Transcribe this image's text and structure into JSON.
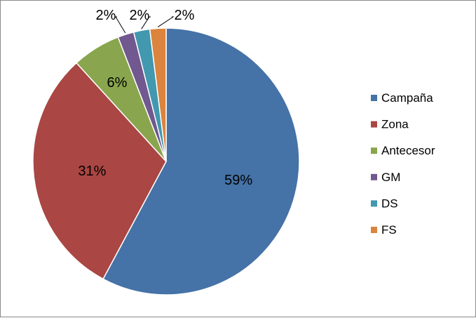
{
  "chart_data": {
    "type": "pie",
    "title": "",
    "legend_position": "right",
    "slices": [
      {
        "name": "Campaña",
        "value": 59,
        "label": "59%",
        "color": "#4572A7"
      },
      {
        "name": "Zona",
        "value": 31,
        "label": "31%",
        "color": "#AA4643"
      },
      {
        "name": "Antecesor",
        "value": 6,
        "label": "6%",
        "color": "#89A54E"
      },
      {
        "name": "GM",
        "value": 2,
        "label": "2%",
        "color": "#71588F"
      },
      {
        "name": "DS",
        "value": 2,
        "label": "2%",
        "color": "#4198AF"
      },
      {
        "name": "FS",
        "value": 2,
        "label": "2%",
        "color": "#DB843D"
      }
    ]
  }
}
